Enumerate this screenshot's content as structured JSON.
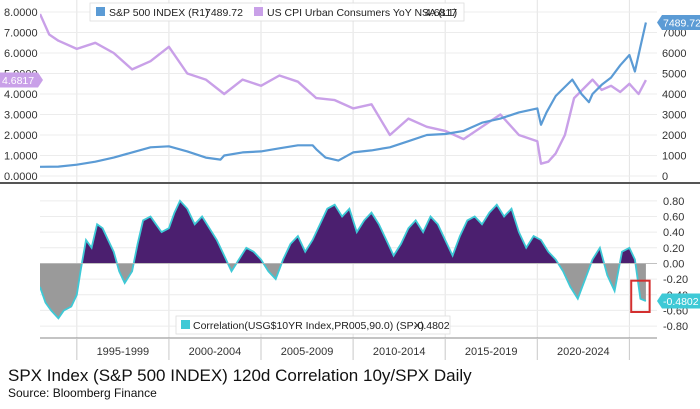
{
  "chart_data": [
    {
      "type": "line",
      "panel": "top",
      "legend_position": "top",
      "grid": true,
      "series": [
        {
          "name": "S&P 500 INDEX (R1)",
          "last_value_label": "7489.72",
          "axis": "right",
          "color": "#5b9bd5",
          "x": [
            1993,
            1994,
            1995,
            1996,
            1997,
            1998,
            1999,
            2000,
            2001,
            2002,
            2002.8,
            2003,
            2004,
            2005,
            2006,
            2007,
            2007.8,
            2008,
            2008.5,
            2009.2,
            2010,
            2011,
            2012,
            2013,
            2014,
            2015,
            2016,
            2017,
            2018,
            2019,
            2020.0,
            2020.2,
            2020.5,
            2021,
            2021.9,
            2022.4,
            2022.8,
            2023,
            2023.5,
            2024,
            2024.5,
            2025,
            2025.3,
            2025.6,
            2025.9
          ],
          "values": [
            450,
            460,
            550,
            700,
            900,
            1150,
            1400,
            1450,
            1200,
            900,
            800,
            1000,
            1150,
            1200,
            1350,
            1500,
            1500,
            1300,
            900,
            750,
            1150,
            1250,
            1400,
            1700,
            2000,
            2050,
            2200,
            2600,
            2800,
            3100,
            3300,
            2500,
            3100,
            3900,
            4700,
            4000,
            3600,
            4000,
            4450,
            4800,
            5400,
            5900,
            5100,
            6300,
            7490
          ]
        },
        {
          "name": "US CPI Urban Consumers YoY NSA (L1)",
          "last_value_label": "4.6817",
          "axis": "left",
          "color": "#c9a0e8",
          "x": [
            1993,
            1993.5,
            1994,
            1995,
            1996,
            1997,
            1998,
            1999,
            2000,
            2001,
            2002,
            2003,
            2004,
            2005,
            2006,
            2007,
            2008,
            2009,
            2010,
            2011,
            2012,
            2013,
            2014,
            2015,
            2016,
            2017,
            2018,
            2019,
            2020.0,
            2020.2,
            2020.6,
            2021,
            2021.5,
            2022,
            2023,
            2023.5,
            2024,
            2024.5,
            2025,
            2025.5,
            2025.9
          ],
          "values": [
            7.9,
            6.9,
            6.6,
            6.2,
            6.5,
            6.0,
            5.2,
            5.6,
            6.3,
            5.0,
            4.7,
            4.0,
            4.7,
            4.4,
            4.9,
            4.6,
            3.8,
            3.7,
            3.3,
            3.5,
            2.0,
            2.8,
            2.4,
            2.2,
            1.8,
            2.4,
            3.0,
            2.0,
            1.7,
            0.6,
            0.7,
            1.1,
            2.0,
            3.8,
            4.7,
            4.2,
            4.4,
            4.1,
            4.5,
            4.0,
            4.68
          ]
        }
      ],
      "left_axis": {
        "ylim": [
          0,
          8
        ],
        "ticks": [
          "0.0000",
          "1.0000",
          "2.0000",
          "3.0000",
          "4.0000",
          "5.0000",
          "6.0000",
          "7.0000",
          "8.0000"
        ]
      },
      "right_axis": {
        "ylim": [
          0,
          8000
        ],
        "ticks": [
          "0",
          "1000",
          "2000",
          "3000",
          "4000",
          "5000",
          "6000",
          "7000"
        ]
      }
    },
    {
      "type": "area",
      "panel": "bottom",
      "legend_position": "bottom-center",
      "grid": true,
      "series": [
        {
          "name": "Correlation(USG$10YR Index,PR005,90.0) (SPX)",
          "last_value_label": "-0.4802",
          "axis": "right",
          "color": "#3ec9d6",
          "fill_positive": "#4b1f6f",
          "fill_negative": "#9a9a9a",
          "x": [
            1993.0,
            1993.3,
            1993.6,
            1994.0,
            1994.3,
            1994.7,
            1995.0,
            1995.2,
            1995.5,
            1995.8,
            1996.1,
            1996.4,
            1996.7,
            1997.0,
            1997.3,
            1997.6,
            1998.0,
            1998.3,
            1998.6,
            1999.0,
            1999.3,
            1999.6,
            2000.0,
            2000.3,
            2000.6,
            2001.0,
            2001.4,
            2001.8,
            2002.2,
            2002.6,
            2003.0,
            2003.4,
            2003.8,
            2004.2,
            2004.6,
            2005.0,
            2005.4,
            2005.8,
            2006.2,
            2006.6,
            2007.0,
            2007.4,
            2007.8,
            2008.2,
            2008.6,
            2009.0,
            2009.4,
            2009.8,
            2010.2,
            2010.6,
            2011.0,
            2011.4,
            2011.8,
            2012.2,
            2012.6,
            2013.0,
            2013.4,
            2013.8,
            2014.2,
            2014.6,
            2015.0,
            2015.4,
            2015.8,
            2016.2,
            2016.6,
            2017.0,
            2017.4,
            2017.8,
            2018.2,
            2018.6,
            2019.0,
            2019.4,
            2019.8,
            2020.2,
            2020.6,
            2021.0,
            2021.4,
            2021.8,
            2022.2,
            2022.6,
            2023.0,
            2023.4,
            2023.8,
            2024.2,
            2024.6,
            2025.0,
            2025.3,
            2025.6,
            2025.9
          ],
          "values": [
            -0.3,
            -0.5,
            -0.6,
            -0.7,
            -0.6,
            -0.55,
            -0.4,
            -0.1,
            0.3,
            0.2,
            0.5,
            0.45,
            0.3,
            0.15,
            -0.1,
            -0.25,
            -0.1,
            0.25,
            0.55,
            0.6,
            0.5,
            0.4,
            0.45,
            0.65,
            0.8,
            0.7,
            0.5,
            0.6,
            0.45,
            0.3,
            0.1,
            -0.1,
            0.05,
            0.2,
            0.15,
            0.05,
            -0.1,
            -0.2,
            0.05,
            0.25,
            0.35,
            0.15,
            0.3,
            0.5,
            0.7,
            0.75,
            0.6,
            0.7,
            0.4,
            0.55,
            0.65,
            0.5,
            0.3,
            0.1,
            0.25,
            0.45,
            0.55,
            0.4,
            0.6,
            0.5,
            0.3,
            0.1,
            0.35,
            0.55,
            0.6,
            0.5,
            0.65,
            0.75,
            0.6,
            0.7,
            0.4,
            0.2,
            0.35,
            0.3,
            0.15,
            0.05,
            -0.1,
            -0.3,
            -0.45,
            -0.2,
            0.05,
            0.2,
            -0.15,
            -0.35,
            0.15,
            0.2,
            0.05,
            -0.45,
            -0.48
          ]
        }
      ],
      "right_axis": {
        "ylim": [
          -0.85,
          0.9
        ],
        "ticks": [
          "-0.80",
          "-0.60",
          "-0.40",
          "-0.20",
          "0.00",
          "0.20",
          "0.40",
          "0.60",
          "0.80"
        ]
      },
      "highlight_box": {
        "x_start": 2025.1,
        "x_end": 2026.1,
        "color": "#d32f2f"
      }
    }
  ],
  "x_axis": {
    "range": [
      1993,
      2026.5
    ],
    "tick_labels": [
      "1995-1999",
      "2000-2004",
      "2005-2009",
      "2010-2014",
      "2015-2019",
      "2020-2024"
    ],
    "tick_ranges": [
      [
        1995,
        2000
      ],
      [
        2000,
        2005
      ],
      [
        2005,
        2010
      ],
      [
        2010,
        2015
      ],
      [
        2015,
        2020
      ],
      [
        2020,
        2025
      ]
    ]
  },
  "caption": {
    "title": "SPX Index (S&P 500 INDEX) 120d Correlation 10y/SPX Daily",
    "source": "Source: Bloomberg Finance"
  }
}
